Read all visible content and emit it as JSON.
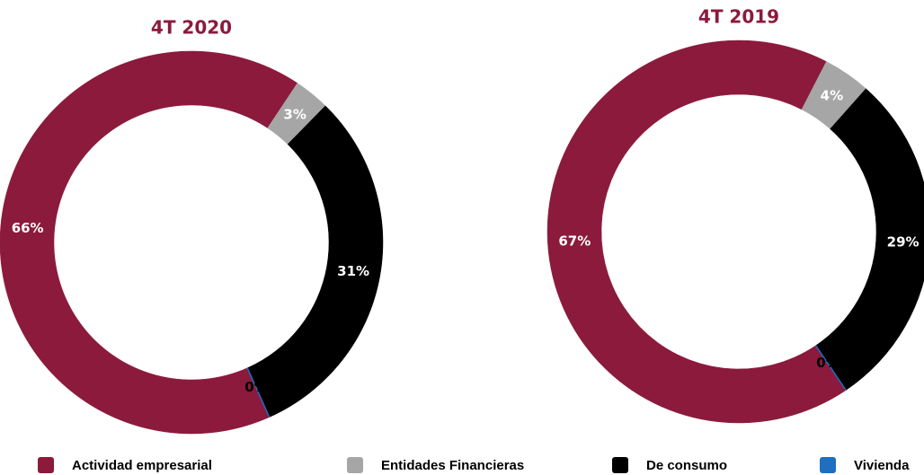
{
  "chart_data": [
    {
      "type": "donut",
      "title": "4T 2020",
      "categories": [
        "Actividad empresarial",
        "Entidades Financieras",
        "De consumo",
        "Vivienda"
      ],
      "colors": [
        "#8b1a3c",
        "#a6a6a6",
        "#000000",
        "#1f6fc0"
      ],
      "values": [
        66,
        3,
        31,
        0
      ],
      "value_labels": [
        "66%",
        "3%",
        "31%",
        "0%"
      ]
    },
    {
      "type": "donut",
      "title": "4T 2019",
      "categories": [
        "Actividad empresarial",
        "Entidades Financieras",
        "De consumo",
        "Vivienda"
      ],
      "colors": [
        "#8b1a3c",
        "#a6a6a6",
        "#000000",
        "#1f6fc0"
      ],
      "values": [
        67,
        4,
        29,
        0
      ],
      "value_labels": [
        "67%",
        "4%",
        "29%",
        "0%"
      ]
    }
  ]
}
